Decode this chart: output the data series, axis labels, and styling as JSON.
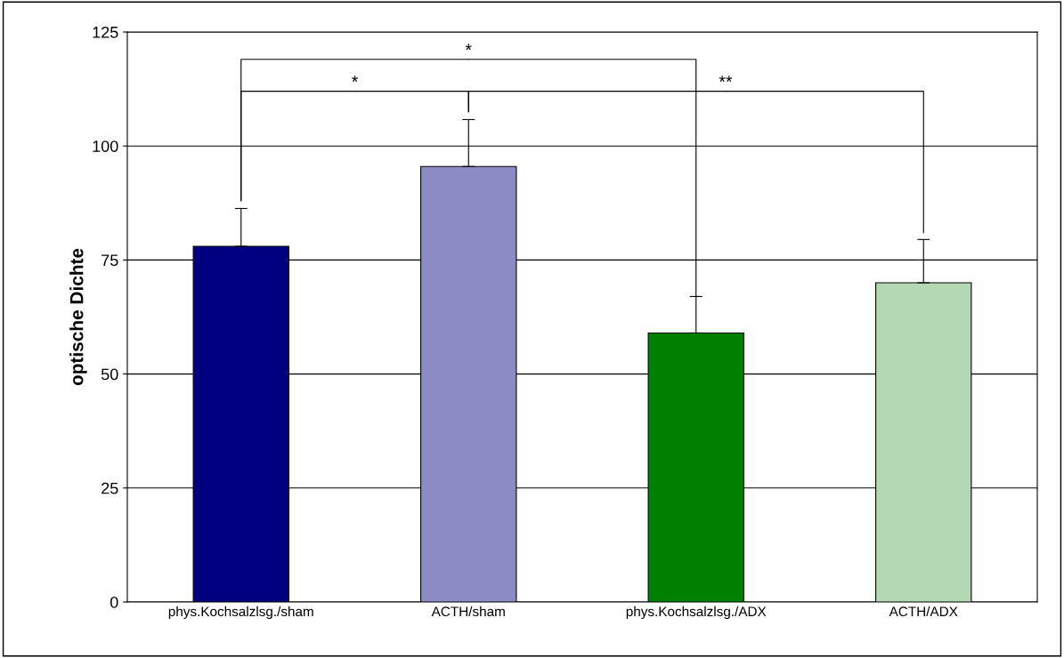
{
  "chart_data": {
    "type": "bar",
    "categories": [
      "phys.Kochsalzlsg./sham",
      "ACTH/sham",
      "phys.Kochsalzlsg./ADX",
      "ACTH/ADX"
    ],
    "values": [
      78,
      95.5,
      59,
      70
    ],
    "errors": [
      [
        78,
        86.3
      ],
      [
        95.5,
        105.8
      ],
      [
        59,
        67
      ],
      [
        70,
        79.5
      ]
    ],
    "colors": [
      "#000080",
      "#8c8cc4",
      "#008000",
      "#b4d8b4"
    ],
    "ylabel": "optische Dichte",
    "ylim": [
      0,
      125
    ],
    "yticks": [
      0,
      25,
      50,
      75,
      100,
      125
    ],
    "grid": "y",
    "legend": false,
    "annotations": [
      {
        "text": "*",
        "x": "phys.Kochsalzlsg./ADX",
        "y": 67
      },
      "*",
      "**"
    ]
  }
}
